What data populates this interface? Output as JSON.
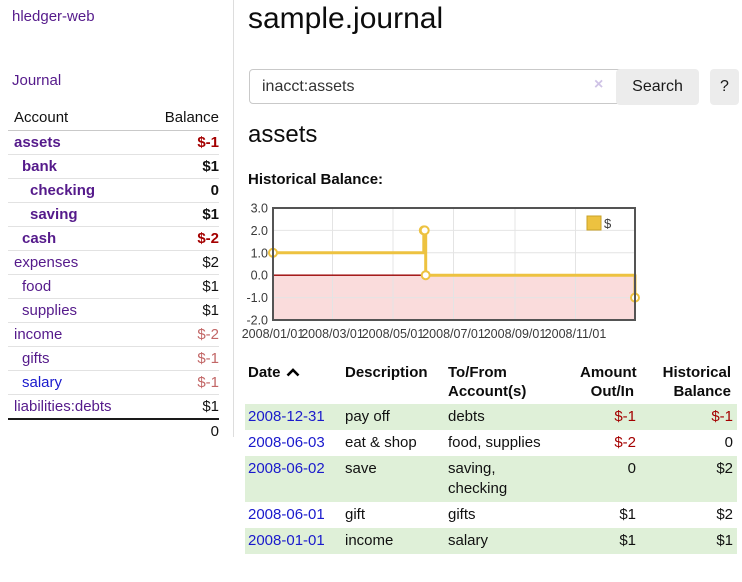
{
  "app": {
    "brand": "hledger-web"
  },
  "colors": {
    "link_purple": "#551a8b",
    "link_blue": "#1a1acc",
    "negative_strong": "#a40000",
    "negative_soft": "#c26666",
    "row_stripe_green": "#dff0d8",
    "chart_gold": "#edc240",
    "chart_negative_fill": "#fadcdc",
    "chart_zero_line": "#990000"
  },
  "sidebar": {
    "journal_link": "Journal",
    "accounts_table": {
      "headers": {
        "account": "Account",
        "balance": "Balance"
      },
      "rows": [
        {
          "name": "assets",
          "depth": 1,
          "bold": true,
          "balance": "$-1",
          "balance_class": "neg-strong"
        },
        {
          "name": "bank",
          "depth": 2,
          "bold": true,
          "balance": "$1",
          "balance_class": "pos"
        },
        {
          "name": "checking",
          "depth": 3,
          "bold": true,
          "balance": "0",
          "balance_class": "pos"
        },
        {
          "name": "saving",
          "depth": 3,
          "bold": true,
          "balance": "$1",
          "balance_class": "pos"
        },
        {
          "name": "cash",
          "depth": 2,
          "bold": true,
          "balance": "$-2",
          "balance_class": "neg-strong"
        },
        {
          "name": "expenses",
          "depth": 1,
          "bold": false,
          "balance": "$2",
          "balance_class": "pos"
        },
        {
          "name": "food",
          "depth": 2,
          "bold": false,
          "balance": "$1",
          "balance_class": "pos"
        },
        {
          "name": "supplies",
          "depth": 2,
          "bold": false,
          "balance": "$1",
          "balance_class": "pos"
        },
        {
          "name": "income",
          "depth": 1,
          "bold": false,
          "balance": "$-2",
          "balance_class": "neg-soft"
        },
        {
          "name": "gifts",
          "depth": 2,
          "bold": false,
          "balance": "$-1",
          "balance_class": "neg-soft"
        },
        {
          "name": "salary",
          "depth": 2,
          "bold": false,
          "balance": "$-1",
          "balance_class": "neg-soft",
          "link_class": "unvisited"
        },
        {
          "name": "liabilities:debts",
          "depth": 1,
          "bold": false,
          "balance": "$1",
          "balance_class": "pos"
        }
      ],
      "total": "0"
    }
  },
  "main": {
    "title": "sample.journal",
    "search": {
      "value": "inacct:assets",
      "clear_icon": "×",
      "button_label": "Search",
      "help_label": "?"
    },
    "account_heading": "assets",
    "chart_label": "Historical Balance:",
    "register_table": {
      "headers": [
        {
          "line1": "Date",
          "sortable": true
        },
        {
          "line1": "Description"
        },
        {
          "line1": "To/From",
          "line2": "Account(s)"
        },
        {
          "line1": "Amount",
          "line2": "Out/In",
          "align": "right"
        },
        {
          "line1": "Historical",
          "line2": "Balance",
          "align": "right"
        }
      ],
      "rows": [
        {
          "date": "2008-12-31",
          "description": "pay off",
          "accounts": "debts",
          "amount": "$-1",
          "amount_negative": true,
          "balance": "$-1",
          "balance_negative": true
        },
        {
          "date": "2008-06-03",
          "description": "eat & shop",
          "accounts": "food, supplies",
          "amount": "$-2",
          "amount_negative": true,
          "balance": "0",
          "balance_negative": false
        },
        {
          "date": "2008-06-02",
          "description": "save",
          "accounts": "saving, checking",
          "amount": "0",
          "amount_negative": false,
          "balance": "$2",
          "balance_negative": false
        },
        {
          "date": "2008-06-01",
          "description": "gift",
          "accounts": "gifts",
          "amount": "$1",
          "amount_negative": false,
          "balance": "$2",
          "balance_negative": false
        },
        {
          "date": "2008-01-01",
          "description": "income",
          "accounts": "salary",
          "amount": "$1",
          "amount_negative": false,
          "balance": "$1",
          "balance_negative": false
        }
      ]
    }
  },
  "chart_data": {
    "type": "line",
    "title": "Historical Balance",
    "step": true,
    "series": [
      {
        "name": "$",
        "color": "#edc240",
        "points": [
          [
            "2008-01-01",
            1
          ],
          [
            "2008-06-01",
            2
          ],
          [
            "2008-06-02",
            2
          ],
          [
            "2008-06-03",
            0
          ],
          [
            "2008-12-31",
            -1
          ]
        ]
      }
    ],
    "xlim": [
      "2008-01-01",
      "2008-12-31"
    ],
    "ylim": [
      -2,
      3
    ],
    "x_ticks": [
      {
        "date": "2008-01-01",
        "label": "2008/01/01"
      },
      {
        "date": "2008-03-01",
        "label": "2008/03/01"
      },
      {
        "date": "2008-05-01",
        "label": "2008/05/01"
      },
      {
        "date": "2008-07-01",
        "label": "2008/07/01"
      },
      {
        "date": "2008-09-01",
        "label": "2008/09/01"
      },
      {
        "date": "2008-11-01",
        "label": "2008/11/01"
      }
    ],
    "y_ticks": [
      3.0,
      2.0,
      1.0,
      0.0,
      -1.0,
      -2.0
    ],
    "grid": true,
    "legend": {
      "label": "$",
      "position": "top-right"
    },
    "negative_region_fill": "#fadcdc",
    "zero_line_color": "#990000"
  }
}
